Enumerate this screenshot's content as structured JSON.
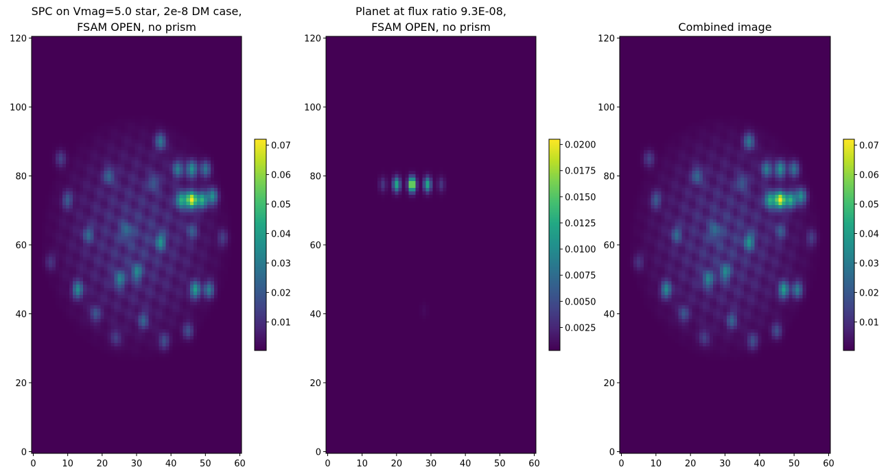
{
  "chart_data": [
    {
      "type": "heatmap",
      "title_lines": [
        "SPC on Vmag=5.0 star, 2e-8 DM case,",
        "FSAM OPEN, no prism"
      ],
      "xlabel": "",
      "ylabel": "",
      "xlim": [
        -0.5,
        60.5
      ],
      "ylim": [
        -0.5,
        120.5
      ],
      "origin": "lower",
      "colormap": "viridis",
      "grid": false,
      "x_ticks": [
        0,
        10,
        20,
        30,
        40,
        50,
        60
      ],
      "y_ticks": [
        0,
        20,
        40,
        60,
        80,
        100,
        120
      ],
      "colorbar": {
        "min": 0.0003,
        "max": 0.072,
        "ticks": [
          0.01,
          0.02,
          0.03,
          0.04,
          0.05,
          0.06,
          0.07
        ],
        "tick_labels": [
          "0.01",
          "0.02",
          "0.03",
          "0.04",
          "0.05",
          "0.06",
          "0.07"
        ]
      },
      "features": [
        {
          "x": 46,
          "y": 73,
          "value": 0.072
        },
        {
          "x": 43,
          "y": 73,
          "value": 0.045
        },
        {
          "x": 49,
          "y": 73,
          "value": 0.045
        },
        {
          "x": 52,
          "y": 74,
          "value": 0.038
        },
        {
          "x": 46,
          "y": 82,
          "value": 0.038
        },
        {
          "x": 42,
          "y": 82,
          "value": 0.03
        },
        {
          "x": 50,
          "y": 82,
          "value": 0.03
        },
        {
          "x": 46,
          "y": 64,
          "value": 0.02
        },
        {
          "x": 37,
          "y": 61,
          "value": 0.032
        },
        {
          "x": 13,
          "y": 47,
          "value": 0.035
        },
        {
          "x": 25,
          "y": 50,
          "value": 0.03
        },
        {
          "x": 30,
          "y": 52,
          "value": 0.03
        },
        {
          "x": 47,
          "y": 47,
          "value": 0.04
        },
        {
          "x": 51,
          "y": 47,
          "value": 0.032
        },
        {
          "x": 37,
          "y": 90,
          "value": 0.03
        },
        {
          "x": 10,
          "y": 73,
          "value": 0.022
        },
        {
          "x": 22,
          "y": 80,
          "value": 0.024
        },
        {
          "x": 16,
          "y": 63,
          "value": 0.022
        },
        {
          "x": 27,
          "y": 64,
          "value": 0.022
        },
        {
          "x": 8,
          "y": 85,
          "value": 0.018
        },
        {
          "x": 35,
          "y": 78,
          "value": 0.02
        },
        {
          "x": 18,
          "y": 40,
          "value": 0.02
        },
        {
          "x": 32,
          "y": 38,
          "value": 0.022
        },
        {
          "x": 38,
          "y": 32,
          "value": 0.02
        },
        {
          "x": 45,
          "y": 35,
          "value": 0.02
        },
        {
          "x": 24,
          "y": 33,
          "value": 0.016
        },
        {
          "x": 55,
          "y": 62,
          "value": 0.016
        },
        {
          "x": 5,
          "y": 55,
          "value": 0.014
        }
      ]
    },
    {
      "type": "heatmap",
      "title_lines": [
        "Planet at flux ratio 9.3E-08,",
        "FSAM OPEN, no prism"
      ],
      "xlabel": "",
      "ylabel": "",
      "xlim": [
        -0.5,
        60.5
      ],
      "ylim": [
        -0.5,
        120.5
      ],
      "origin": "lower",
      "colormap": "viridis",
      "grid": false,
      "x_ticks": [
        0,
        10,
        20,
        30,
        40,
        50,
        60
      ],
      "y_ticks": [
        0,
        20,
        40,
        60,
        80,
        100,
        120
      ],
      "colorbar": {
        "min": 0.0003,
        "max": 0.0205,
        "ticks": [
          0.0025,
          0.005,
          0.0075,
          0.01,
          0.0125,
          0.015,
          0.0175,
          0.02
        ],
        "tick_labels": [
          "0.0025",
          "0.0050",
          "0.0075",
          "0.0100",
          "0.0125",
          "0.0150",
          "0.0175",
          "0.0200"
        ]
      },
      "features": [
        {
          "x": 24.5,
          "y": 77.5,
          "value": 0.0205
        },
        {
          "x": 20,
          "y": 77.5,
          "value": 0.0125
        },
        {
          "x": 29,
          "y": 77.5,
          "value": 0.0125
        },
        {
          "x": 16,
          "y": 77.5,
          "value": 0.0035
        },
        {
          "x": 33,
          "y": 77.5,
          "value": 0.0035
        },
        {
          "x": 28,
          "y": 41,
          "value": 0.0008
        }
      ]
    },
    {
      "type": "heatmap",
      "title_lines": [
        "Combined image"
      ],
      "xlabel": "",
      "ylabel": "",
      "xlim": [
        -0.5,
        60.5
      ],
      "ylim": [
        -0.5,
        120.5
      ],
      "origin": "lower",
      "colormap": "viridis",
      "grid": false,
      "x_ticks": [
        0,
        10,
        20,
        30,
        40,
        50,
        60
      ],
      "y_ticks": [
        0,
        20,
        40,
        60,
        80,
        100,
        120
      ],
      "colorbar": {
        "min": 0.0003,
        "max": 0.072,
        "ticks": [
          0.01,
          0.02,
          0.03,
          0.04,
          0.05,
          0.06,
          0.07
        ],
        "tick_labels": [
          "0.01",
          "0.02",
          "0.03",
          "0.04",
          "0.05",
          "0.06",
          "0.07"
        ]
      },
      "features": [
        {
          "x": 46,
          "y": 73,
          "value": 0.072
        },
        {
          "x": 43,
          "y": 73,
          "value": 0.045
        },
        {
          "x": 49,
          "y": 73,
          "value": 0.045
        },
        {
          "x": 52,
          "y": 74,
          "value": 0.038
        },
        {
          "x": 46,
          "y": 82,
          "value": 0.038
        },
        {
          "x": 42,
          "y": 82,
          "value": 0.03
        },
        {
          "x": 50,
          "y": 82,
          "value": 0.03
        },
        {
          "x": 46,
          "y": 64,
          "value": 0.02
        },
        {
          "x": 37,
          "y": 61,
          "value": 0.032
        },
        {
          "x": 13,
          "y": 47,
          "value": 0.035
        },
        {
          "x": 25,
          "y": 50,
          "value": 0.03
        },
        {
          "x": 30,
          "y": 52,
          "value": 0.03
        },
        {
          "x": 47,
          "y": 47,
          "value": 0.04
        },
        {
          "x": 51,
          "y": 47,
          "value": 0.032
        },
        {
          "x": 37,
          "y": 90,
          "value": 0.03
        },
        {
          "x": 10,
          "y": 73,
          "value": 0.022
        },
        {
          "x": 22,
          "y": 80,
          "value": 0.024
        },
        {
          "x": 16,
          "y": 63,
          "value": 0.022
        },
        {
          "x": 27,
          "y": 64,
          "value": 0.022
        },
        {
          "x": 8,
          "y": 85,
          "value": 0.018
        },
        {
          "x": 35,
          "y": 78,
          "value": 0.02
        },
        {
          "x": 18,
          "y": 40,
          "value": 0.02
        },
        {
          "x": 32,
          "y": 38,
          "value": 0.022
        },
        {
          "x": 38,
          "y": 32,
          "value": 0.02
        },
        {
          "x": 45,
          "y": 35,
          "value": 0.02
        },
        {
          "x": 24,
          "y": 33,
          "value": 0.016
        },
        {
          "x": 55,
          "y": 62,
          "value": 0.016
        },
        {
          "x": 5,
          "y": 55,
          "value": 0.014
        }
      ]
    }
  ]
}
